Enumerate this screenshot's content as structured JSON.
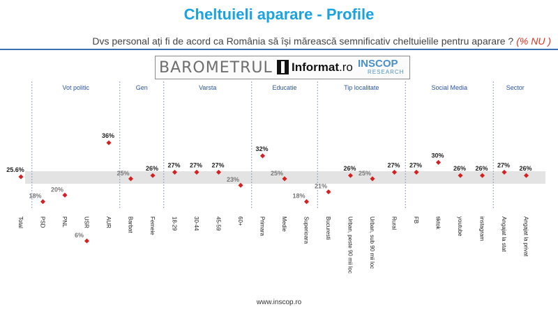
{
  "title": "Cheltuieli aparare - Profile",
  "subtitle": "Dvs personal ați fi de acord ca România să își mărească semnificativ cheltuielile pentru aparare ?",
  "subtitle_highlight": "(% NU )",
  "logo": {
    "barometrul": "BAROMETRUL",
    "informat": "Informat",
    "informat_suffix": ".ro",
    "inscop": "INSCOP",
    "research": "RESEARCH"
  },
  "footer": "www.inscop.ro",
  "colors": {
    "title": "#1aa3e0",
    "rule": "#3a6fb0",
    "marker": "#d42020",
    "band": "#e3e3e3",
    "group_label": "#2a55a0",
    "label_above": "#222222",
    "label_below": "#777777"
  },
  "chart_data": {
    "type": "scatter",
    "reference": {
      "label": "Total",
      "value": 25.6
    },
    "groups": [
      {
        "name": "",
        "categories": [
          "Total"
        ],
        "values": [
          25.6
        ],
        "labels": [
          "25.6%"
        ]
      },
      {
        "name": "Vot politic",
        "categories": [
          "PSD",
          "PNL",
          "USR",
          "AUR"
        ],
        "values": [
          18,
          20,
          6,
          36
        ],
        "labels": [
          "18%",
          "20%",
          "6%",
          "36%"
        ]
      },
      {
        "name": "Gen",
        "categories": [
          "Barbat",
          "Femeie"
        ],
        "values": [
          25,
          26
        ],
        "labels": [
          "25%",
          "26%"
        ]
      },
      {
        "name": "Varsta",
        "categories": [
          "18-29",
          "30-44",
          "45-59",
          "60+"
        ],
        "values": [
          27,
          27,
          27,
          23
        ],
        "labels": [
          "27%",
          "27%",
          "27%",
          "23%"
        ]
      },
      {
        "name": "Educatie",
        "categories": [
          "Primara",
          "Medie",
          "Superioara"
        ],
        "values": [
          32,
          25,
          18
        ],
        "labels": [
          "32%",
          "25%",
          "18%"
        ]
      },
      {
        "name": "Tip localitate",
        "categories": [
          "Bucuresti",
          "Urban, peste 90 mii loc",
          "Urban, sub 90 mii loc",
          "Rural"
        ],
        "values": [
          21,
          26,
          25,
          27
        ],
        "labels": [
          "21%",
          "26%",
          "25%",
          "27%"
        ]
      },
      {
        "name": "Social Media",
        "categories": [
          "FB",
          "tiktok",
          "youtube",
          "instagram"
        ],
        "values": [
          27,
          30,
          26,
          26
        ],
        "labels": [
          "27%",
          "30%",
          "26%",
          "26%"
        ]
      },
      {
        "name": "Sector",
        "categories": [
          "Angajat la stat",
          "Angajat la privat"
        ],
        "values": [
          27,
          26
        ],
        "labels": [
          "27%",
          "26%"
        ]
      }
    ]
  }
}
